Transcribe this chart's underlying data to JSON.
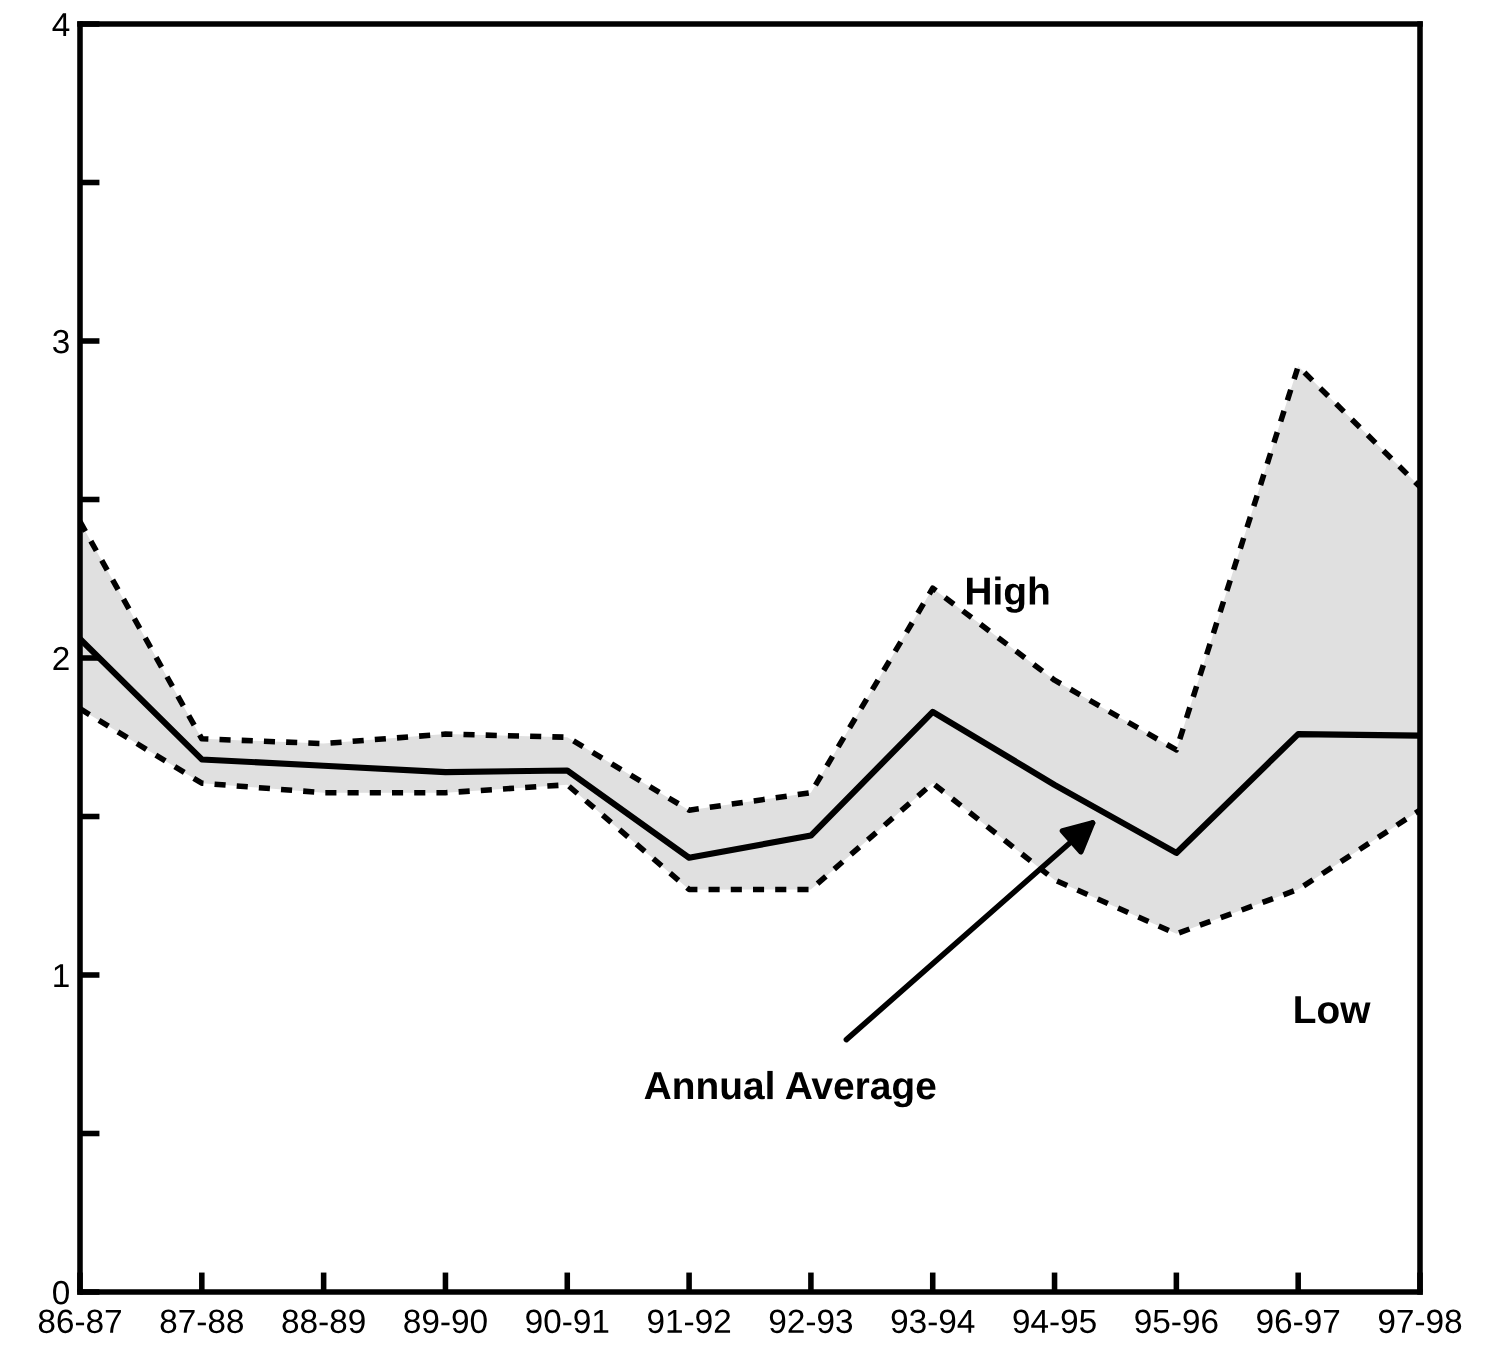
{
  "chart_data": {
    "type": "line",
    "categories": [
      "86-87",
      "87-88",
      "88-89",
      "89-90",
      "90-91",
      "91-92",
      "92-93",
      "93-94",
      "94-95",
      "95-96",
      "96-97",
      "97-98"
    ],
    "series": [
      {
        "name": "High",
        "color": "#000000",
        "line_style": "dotted",
        "values": [
          2.43,
          1.745,
          1.73,
          1.76,
          1.75,
          1.52,
          1.575,
          2.22,
          1.93,
          1.71,
          2.92,
          2.54
        ]
      },
      {
        "name": "Low",
        "color": "#000000",
        "line_style": "dotted",
        "values": [
          1.84,
          1.605,
          1.575,
          1.575,
          1.6,
          1.27,
          1.27,
          1.605,
          1.3,
          1.13,
          1.27,
          1.52
        ]
      },
      {
        "name": "Annual Average",
        "color": "#000000",
        "line_style": "solid",
        "values": [
          2.06,
          1.68,
          1.66,
          1.64,
          1.645,
          1.37,
          1.44,
          1.83,
          1.6,
          1.385,
          1.76,
          1.755
        ],
        "upper": [
          2.43,
          1.745,
          1.73,
          1.76,
          1.75,
          1.52,
          1.575,
          2.22,
          1.93,
          1.71,
          2.92,
          2.54
        ],
        "lower": [
          1.84,
          1.605,
          1.575,
          1.575,
          1.6,
          1.27,
          1.27,
          1.605,
          1.3,
          1.13,
          1.27,
          1.52
        ]
      }
    ],
    "ylim": [
      0,
      4
    ],
    "yticks": [
      0,
      {
        "value": 0.5,
        "label": null
      },
      1,
      {
        "value": 1.5,
        "label": null
      },
      2,
      {
        "value": 2.5,
        "label": null
      },
      3,
      {
        "value": 3.5,
        "label": null
      },
      4
    ],
    "grid": false,
    "legend": false,
    "marker": "none"
  }
}
